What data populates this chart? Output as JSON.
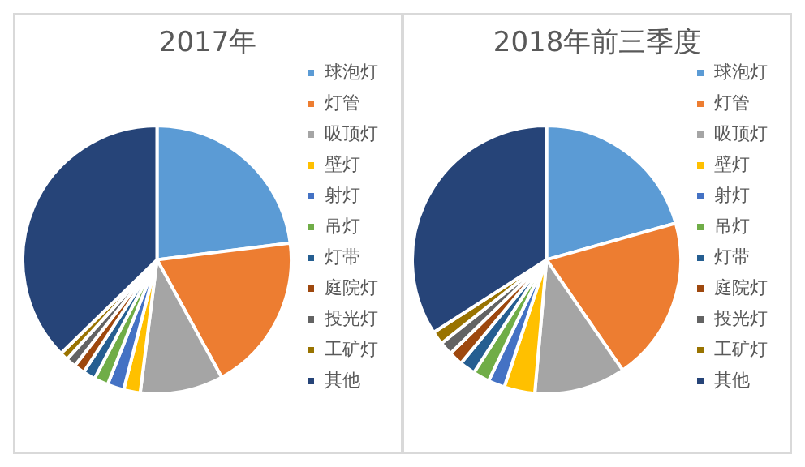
{
  "chart_data": [
    {
      "type": "pie",
      "title": "2017年",
      "legend": "right",
      "categories": [
        "球泡灯",
        "灯管",
        "吸顶灯",
        "壁灯",
        "射灯",
        "吊灯",
        "灯带",
        "庭院灯",
        "投光灯",
        "工矿灯",
        "其他"
      ],
      "values": [
        23,
        19,
        10,
        2,
        2,
        1.7,
        1.5,
        1.3,
        1.2,
        1,
        37.3
      ],
      "colors": [
        "#5b9bd5",
        "#ed7d31",
        "#a5a5a5",
        "#ffc000",
        "#4472c4",
        "#70ad47",
        "#255e91",
        "#9e480e",
        "#636363",
        "#997300",
        "#264478"
      ]
    },
    {
      "type": "pie",
      "title": "2018年前三季度",
      "legend": "right",
      "categories": [
        "球泡灯",
        "灯管",
        "吸顶灯",
        "壁灯",
        "射灯",
        "吊灯",
        "灯带",
        "庭院灯",
        "投光灯",
        "工矿灯",
        "其他"
      ],
      "values": [
        20.6,
        19.8,
        11,
        3.7,
        2,
        2,
        1.9,
        1.7,
        1.6,
        1.6,
        34.1
      ],
      "colors": [
        "#5b9bd5",
        "#ed7d31",
        "#a5a5a5",
        "#ffc000",
        "#4472c4",
        "#70ad47",
        "#255e91",
        "#9e480e",
        "#636363",
        "#997300",
        "#264478"
      ]
    }
  ]
}
